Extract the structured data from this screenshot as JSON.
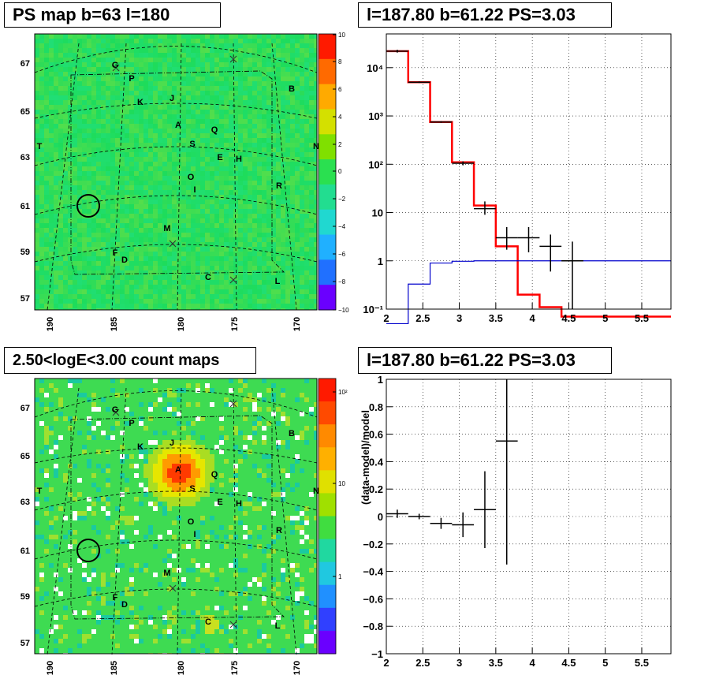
{
  "panels": {
    "ps_map": {
      "title": "PS map b=63 l=180",
      "colorbar_ticks": [
        "10",
        "8",
        "6",
        "4",
        "2",
        "0",
        "−2",
        "−4",
        "−6",
        "−8",
        "−10"
      ],
      "lat_ticks": [
        "67",
        "65",
        "63",
        "61",
        "59",
        "57"
      ],
      "lon_ticks": [
        "190",
        "185",
        "180",
        "175",
        "170"
      ]
    },
    "count_map": {
      "title": "2.50<logE<3.00 count maps",
      "colorbar_ticks": [
        "10²",
        "10",
        "1"
      ],
      "lat_ticks": [
        "67",
        "65",
        "63",
        "61",
        "59",
        "57"
      ],
      "lon_ticks": [
        "190",
        "185",
        "180",
        "175",
        "170"
      ]
    },
    "spectrum": {
      "title": "l=187.80 b=61.22 PS=3.03"
    },
    "residual": {
      "title": "l=187.80 b=61.22 PS=3.03"
    }
  },
  "source_labels": [
    {
      "label": "G"
    },
    {
      "label": "P"
    },
    {
      "label": "K"
    },
    {
      "label": "J"
    },
    {
      "label": "B"
    },
    {
      "label": "A"
    },
    {
      "label": "Q"
    },
    {
      "label": "S"
    },
    {
      "label": "E"
    },
    {
      "label": "H"
    },
    {
      "label": "T"
    },
    {
      "label": "N"
    },
    {
      "label": "O"
    },
    {
      "label": "I"
    },
    {
      "label": "R"
    },
    {
      "label": "M"
    },
    {
      "label": "F"
    },
    {
      "label": "D"
    },
    {
      "label": "C"
    },
    {
      "label": "L"
    }
  ],
  "chart_data": [
    {
      "type": "heatmap",
      "title": "PS map b=63 l=180",
      "xlabel": "",
      "ylabel": "",
      "x_ticks": [
        190,
        185,
        180,
        175,
        170
      ],
      "y_ticks": [
        57,
        59,
        61,
        63,
        65,
        67
      ],
      "color_range": [
        -10,
        10
      ],
      "colors": {
        "low": "#6a00ff",
        "mid": "#22dd66",
        "high": "#ff1a00"
      }
    },
    {
      "type": "heatmap",
      "title": "2.50<logE<3.00 count maps",
      "xlabel": "",
      "ylabel": "",
      "x_ticks": [
        190,
        185,
        180,
        175,
        170
      ],
      "y_ticks": [
        57,
        59,
        61,
        63,
        65,
        67
      ],
      "color_scale": "log",
      "color_range": [
        0.6,
        200
      ]
    },
    {
      "type": "line",
      "title": "l=187.80 b=61.22 PS=3.03",
      "xlabel": "",
      "ylabel": "",
      "xlim": [
        2,
        5.9
      ],
      "ylim": [
        0.1,
        50000
      ],
      "yscale": "log",
      "x_ticks": [
        "2",
        "2.5",
        "3",
        "3.5",
        "4",
        "4.5",
        "5",
        "5.5"
      ],
      "y_ticks": [
        {
          "v": 0.1,
          "label": "10⁻¹"
        },
        {
          "v": 1,
          "label": "1"
        },
        {
          "v": 10,
          "label": "10"
        },
        {
          "v": 100,
          "label": "10²"
        },
        {
          "v": 1000,
          "label": "10³"
        },
        {
          "v": 10000,
          "label": "10⁴"
        }
      ],
      "grid": true,
      "series": [
        {
          "color": "#ff0000",
          "style": "step",
          "edges": [
            2,
            2.3,
            2.6,
            2.9,
            3.2,
            3.5,
            3.8,
            4.1,
            4.4,
            4.7,
            5.0,
            5.3,
            5.6,
            5.9
          ],
          "values": [
            22000,
            5000,
            750,
            110,
            14,
            2,
            0.2,
            0.11,
            0.07,
            0.07,
            0.07,
            0.07,
            0.07
          ]
        },
        {
          "color": "#0000cc",
          "style": "step",
          "edges": [
            2,
            2.3,
            2.6,
            2.9,
            3.2,
            3.5,
            3.8,
            4.1,
            4.4,
            4.7,
            5.0,
            5.3,
            5.6,
            5.9
          ],
          "values": [
            0.05,
            0.33,
            0.9,
            0.98,
            1.0,
            1.0,
            1.0,
            1.0,
            1.0,
            1.0,
            1.0,
            1.0,
            1.0
          ]
        },
        {
          "color": "#000000",
          "style": "points",
          "points": [
            {
              "x": 2.15,
              "y": 22000,
              "xerr": 0.15,
              "ylo": 20500,
              "yhi": 23500
            },
            {
              "x": 2.45,
              "y": 5000,
              "xerr": 0.15,
              "ylo": 4800,
              "yhi": 5200
            },
            {
              "x": 2.75,
              "y": 750,
              "xerr": 0.15,
              "ylo": 720,
              "yhi": 780
            },
            {
              "x": 3.05,
              "y": 105,
              "xerr": 0.15,
              "ylo": 95,
              "yhi": 115
            },
            {
              "x": 3.35,
              "y": 12,
              "xerr": 0.15,
              "ylo": 9,
              "yhi": 17
            },
            {
              "x": 3.65,
              "y": 3,
              "xerr": 0.15,
              "ylo": 1.7,
              "yhi": 5
            },
            {
              "x": 3.95,
              "y": 3,
              "xerr": 0.15,
              "ylo": 1.5,
              "yhi": 5
            },
            {
              "x": 4.25,
              "y": 2,
              "xerr": 0.15,
              "ylo": 0.6,
              "yhi": 3.5
            },
            {
              "x": 4.55,
              "y": 1,
              "xerr": 0.15,
              "ylo": 0.1,
              "yhi": 2.5
            }
          ]
        }
      ]
    },
    {
      "type": "scatter",
      "title": "l=187.80 b=61.22 PS=3.03",
      "xlabel": "",
      "ylabel": "(data-model)/model",
      "xlim": [
        2,
        5.9
      ],
      "ylim": [
        -1,
        1
      ],
      "x_ticks": [
        "2",
        "2.5",
        "3",
        "3.5",
        "4",
        "4.5",
        "5",
        "5.5"
      ],
      "y_ticks": [
        "−1",
        "−0.8",
        "−0.6",
        "−0.4",
        "−0.2",
        "0",
        "0.2",
        "0.4",
        "0.6",
        "0.8",
        "1"
      ],
      "grid": true,
      "points": [
        {
          "x": 2.15,
          "y": 0.02,
          "xerr": 0.15,
          "yerr": 0.03
        },
        {
          "x": 2.45,
          "y": 0.0,
          "xerr": 0.15,
          "yerr": 0.02
        },
        {
          "x": 2.75,
          "y": -0.05,
          "xerr": 0.15,
          "yerr": 0.04
        },
        {
          "x": 3.05,
          "y": -0.06,
          "xerr": 0.15,
          "yerr": 0.09
        },
        {
          "x": 3.35,
          "y": 0.05,
          "xerr": 0.15,
          "yerr": 0.28
        },
        {
          "x": 3.65,
          "y": 0.55,
          "xerr": 0.15,
          "yerr": 0.9
        }
      ]
    }
  ]
}
